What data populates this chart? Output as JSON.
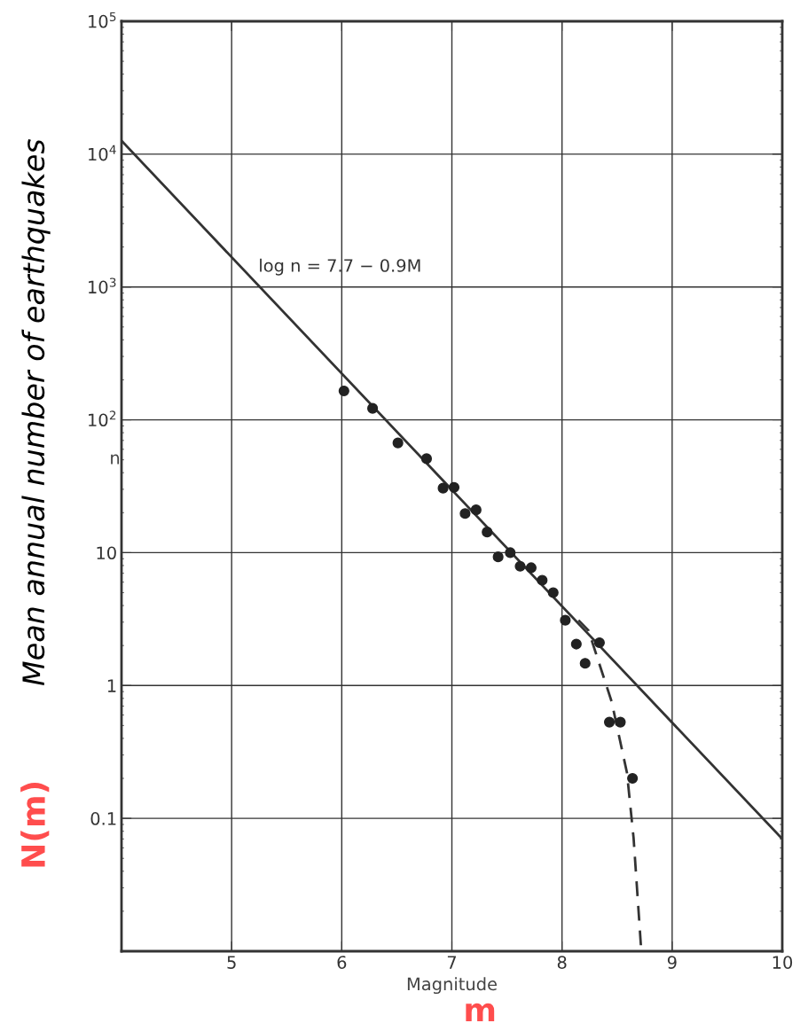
{
  "chart_data": {
    "type": "scatter",
    "xlabel": "Magnitude",
    "ylabel": "n",
    "log": "y",
    "grid": true,
    "xlim": [
      4,
      10
    ],
    "xticks": [
      {
        "value": 4,
        "label": null
      },
      5,
      6,
      7,
      8,
      9,
      10
    ],
    "ylim": [
      0.01,
      100000
    ],
    "yticks": [
      {
        "value": 0.01,
        "label": null
      },
      0.1,
      1,
      10,
      {
        "value": 100,
        "label": "10$^{2}$"
      },
      {
        "value": 1000,
        "label": "10$^{3}$"
      },
      {
        "value": 10000,
        "label": "10$^{4}$"
      },
      {
        "value": 100000,
        "label": "10$^{5}$"
      }
    ],
    "series": [
      {
        "color": "#222222",
        "marker": "circle",
        "x": [
          6.02,
          6.28,
          6.51,
          6.77,
          6.92,
          7.02,
          7.12,
          7.22,
          7.32,
          7.42,
          7.53,
          7.62,
          7.72,
          7.82,
          7.92,
          8.03,
          8.13,
          8.21,
          8.34,
          8.43,
          8.53,
          8.64
        ],
        "values": [
          165,
          122,
          67,
          51,
          30.6,
          31,
          19.7,
          21,
          14.3,
          9.3,
          10,
          7.9,
          7.7,
          6.2,
          5.0,
          3.1,
          2.05,
          1.47,
          2.1,
          0.53,
          0.53,
          0.2
        ]
      },
      {
        "type": "line",
        "color": "#333333",
        "line_style": "solid",
        "x": [
          4,
          10
        ],
        "values": [
          12600,
          0.07
        ]
      },
      {
        "type": "line",
        "color": "#333333",
        "line_style": "dashed",
        "x": [
          8.15,
          8.24,
          8.45,
          8.59,
          8.65,
          8.72
        ],
        "values": [
          3.1,
          2.6,
          0.76,
          0.22,
          0.071,
          0.01
        ]
      }
    ],
    "annotations": [
      "log n = 7.7 − 0.9M",
      "Mean annual number of earthquakes",
      "N(m)",
      "m"
    ]
  }
}
